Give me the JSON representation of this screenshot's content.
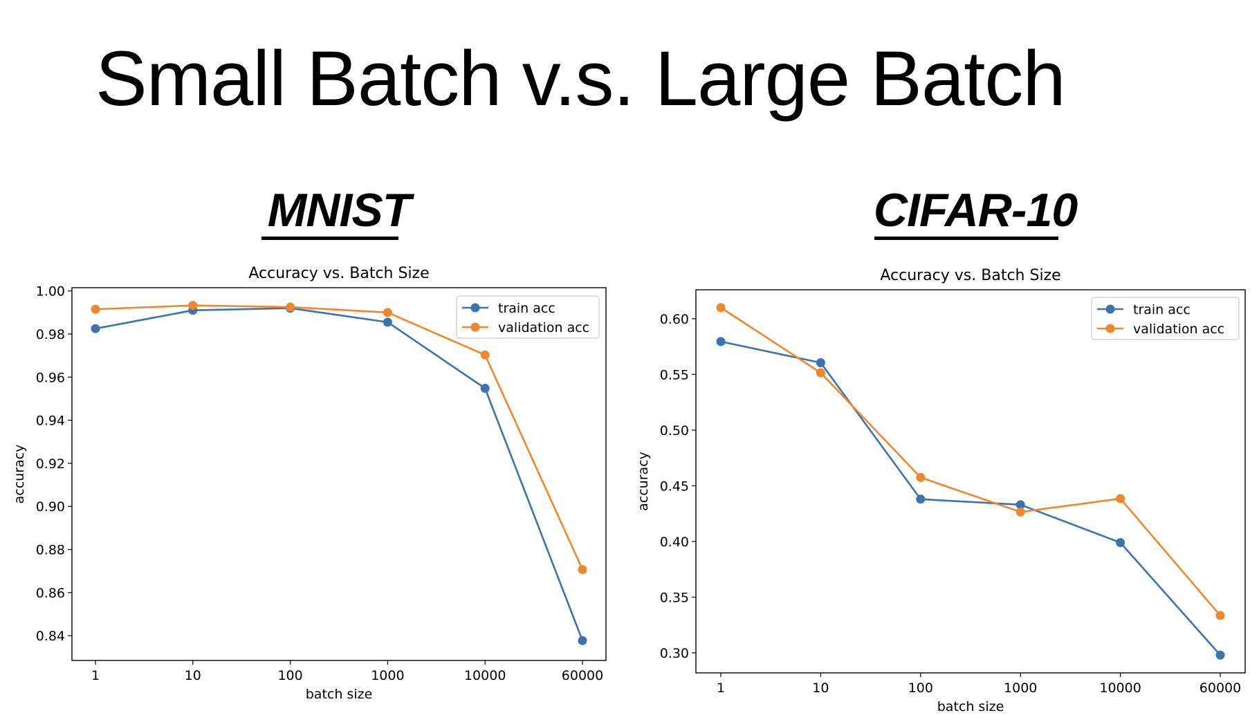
{
  "slide": {
    "title": "Small Batch v.s. Large Batch"
  },
  "panels": [
    {
      "heading": "MNIST"
    },
    {
      "heading": "CIFAR-10"
    }
  ],
  "colors": {
    "train": "#3a73b0",
    "validation": "#f0872f"
  },
  "chart_data": [
    {
      "type": "line",
      "title": "Accuracy vs. Batch Size",
      "xlabel": "batch size",
      "ylabel": "accuracy",
      "categories": [
        "1",
        "10",
        "100",
        "1000",
        "10000",
        "60000"
      ],
      "series": [
        {
          "name": "train acc",
          "values": [
            0.9825,
            0.991,
            0.992,
            0.9855,
            0.9548,
            0.8377
          ]
        },
        {
          "name": "validation acc",
          "values": [
            0.9915,
            0.9933,
            0.9925,
            0.99,
            0.9703,
            0.8707
          ]
        }
      ],
      "yticks": [
        0.84,
        0.86,
        0.88,
        0.9,
        0.92,
        0.94,
        0.96,
        0.98,
        1.0
      ],
      "ytick_labels": [
        "0.84",
        "0.86",
        "0.88",
        "0.90",
        "0.92",
        "0.94",
        "0.96",
        "0.98",
        "1.00"
      ],
      "ylim": [
        0.8285,
        1.0015
      ],
      "grid": false,
      "legend": "top-right"
    },
    {
      "type": "line",
      "title": "Accuracy vs. Batch Size",
      "xlabel": "batch size",
      "ylabel": "accuracy",
      "categories": [
        "1",
        "10",
        "100",
        "1000",
        "10000",
        "60000"
      ],
      "series": [
        {
          "name": "train acc",
          "values": [
            0.5795,
            0.5605,
            0.438,
            0.433,
            0.399,
            0.298
          ]
        },
        {
          "name": "validation acc",
          "values": [
            0.61,
            0.5515,
            0.4575,
            0.4265,
            0.4385,
            0.3335
          ]
        }
      ],
      "yticks": [
        0.3,
        0.35,
        0.4,
        0.45,
        0.5,
        0.55,
        0.6
      ],
      "ytick_labels": [
        "0.30",
        "0.35",
        "0.40",
        "0.45",
        "0.50",
        "0.55",
        "0.60"
      ],
      "ylim": [
        0.282,
        0.626
      ],
      "grid": false,
      "legend": "top-right"
    }
  ]
}
